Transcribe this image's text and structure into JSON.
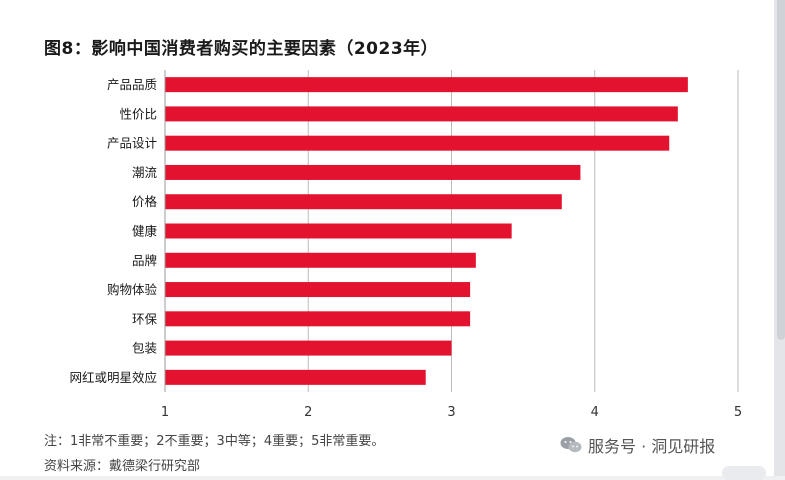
{
  "title": "图8：影响中国消费者购买的主要因素（2023年）",
  "note": "注：1非常不重要；2不重要；3中等；4重要；5非常重要。",
  "source": "资料来源：戴德梁行研究部",
  "watermark": "服务号 · 洞见研报",
  "colors": {
    "bar": "#e3132f",
    "text": "#1a1a1a",
    "grid": "#bbbbbb"
  },
  "icons": {
    "watermark": "wechat-icon"
  },
  "chart_data": {
    "type": "bar",
    "orientation": "horizontal",
    "categories": [
      "产品品质",
      "性价比",
      "产品设计",
      "潮流",
      "价格",
      "健康",
      "品牌",
      "购物体验",
      "环保",
      "包装",
      "网红或明星效应"
    ],
    "values": [
      4.65,
      4.58,
      4.52,
      3.9,
      3.77,
      3.42,
      3.17,
      3.13,
      3.13,
      3.0,
      2.82
    ],
    "xlim": [
      1,
      5
    ],
    "xticks": [
      "1",
      "2",
      "3",
      "4",
      "5"
    ],
    "grid": "vertical",
    "legend": "none"
  }
}
